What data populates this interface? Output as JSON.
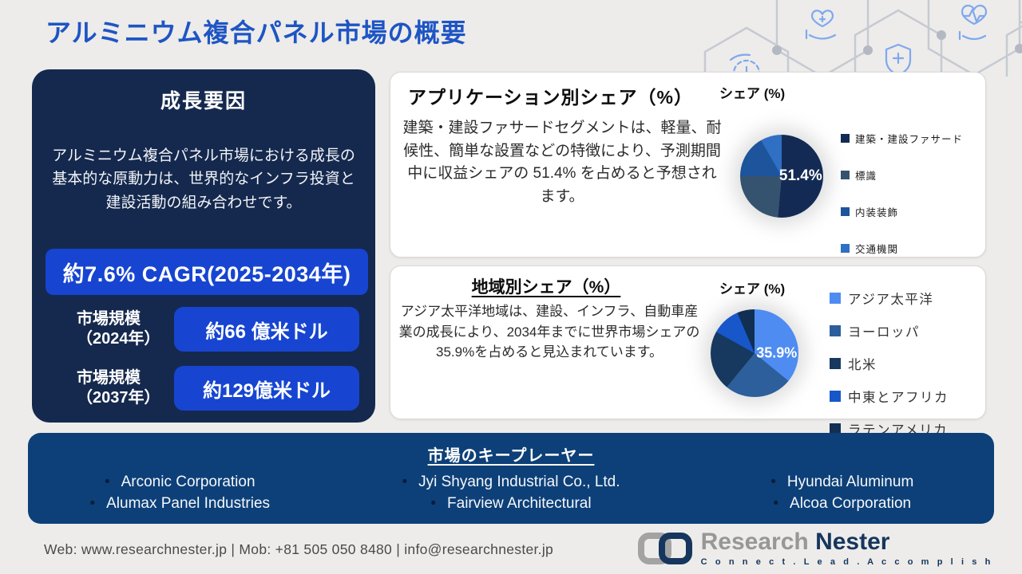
{
  "title": "アルミニウム複合パネル市場の概要",
  "colors": {
    "title_blue": "#1e55c4",
    "growth_panel_navy": "#15294e",
    "accent_badge_blue": "#1745d1",
    "players_bar_blue": "#0d4078",
    "deco_icon_blue": "#7fa8ef"
  },
  "growth_panel": {
    "heading": "成長要因",
    "body": "アルミニウム複合パネル市場における成長の基本的な原動力は、世界的なインフラ投資と建設活動の組み合わせです。",
    "cagr_badge": "約7.6% CAGR(2025-2034年)",
    "market_size_rows": [
      {
        "label_line1": "市場規模",
        "label_line2": "（2024年）",
        "value": "約66 億米ドル"
      },
      {
        "label_line1": "市場規模",
        "label_line2": "（2037年）",
        "value": "約129億米ドル"
      }
    ]
  },
  "application_panel": {
    "heading": "アプリケーション別シェア（%）",
    "body": "建築・建設ファサードセグメントは、軽量、耐候性、簡単な設置などの特徴により、予測期間中に収益シェアの 51.4% を占めると予想されます。",
    "chart_title": "シェア (%)",
    "center_label": "51.4%"
  },
  "regional_panel": {
    "heading": "地域別シェア（%）",
    "body": "アジア太平洋地域は、建設、インフラ、自動車産業の成長により、2034年までに世界市場シェアの35.9%を占めると見込まれています。",
    "chart_title": "シェア (%)",
    "center_label": "35.9%"
  },
  "chart_data": [
    {
      "type": "pie",
      "title": "シェア (%)",
      "labels": [
        "建築・建設ファサード",
        "標識",
        "内装装飾",
        "交通機関"
      ],
      "values": [
        51.4,
        23.6,
        16.7,
        8.3
      ],
      "colors": [
        "#132b54",
        "#35536f",
        "#1d549b",
        "#2f6fc4"
      ],
      "annotation": "51.4%",
      "legend_position": "right",
      "start_angle_deg": 0
    },
    {
      "type": "pie",
      "title": "シェア (%)",
      "labels": [
        "アジア太平洋",
        "ヨーロッパ",
        "北米",
        "中東とアフリカ",
        "ラテンアメリカ"
      ],
      "values": [
        35.9,
        25.0,
        22.2,
        10.5,
        6.4
      ],
      "colors": [
        "#4e8cf1",
        "#2c5f9b",
        "#17395f",
        "#1757c9",
        "#112f52"
      ],
      "annotation": "35.9%",
      "legend_position": "right",
      "start_angle_deg": 0
    }
  ],
  "key_players": {
    "heading": "市場のキープレーヤー",
    "columns": [
      [
        "Arconic Corporation",
        "Alumax Panel Industries"
      ],
      [
        "Jyi Shyang Industrial Co., Ltd.",
        "Fairview Architectural"
      ],
      [
        "Hyundai Aluminum",
        "Alcoa Corporation"
      ]
    ]
  },
  "footer": {
    "contact": "Web: www.researchnester.jp | Mob: +81 505 050 8480 | info@researchnester.jp",
    "logo_word_1": "Research",
    "logo_word_2": "Nester",
    "tagline": "C o n n e c t .   L e a d .   A c c o m p l i s h"
  }
}
